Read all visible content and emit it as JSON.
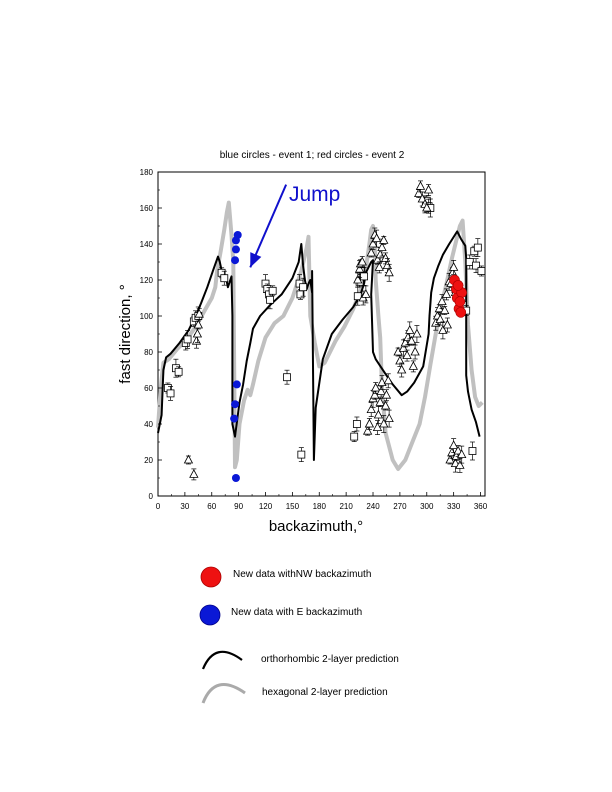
{
  "chart_data": {
    "type": "scatter",
    "title": "blue circles - event 1; red circles - event 2",
    "xlabel": "backazimuth,°",
    "ylabel": "fast direction, °",
    "xlim": [
      0,
      365
    ],
    "ylim": [
      0,
      180
    ],
    "xticks": [
      "0",
      "30",
      "60",
      "90",
      "120",
      "150",
      "180",
      "210",
      "240",
      "270",
      "300",
      "330",
      "360"
    ],
    "yticks": [
      "0",
      "20",
      "40",
      "60",
      "80",
      "100",
      "120",
      "140",
      "160",
      "180"
    ],
    "annotation": "Jump",
    "annotation_arrow": {
      "from": [
        143,
        173
      ],
      "to": [
        103,
        127
      ]
    },
    "colors": {
      "blue": "#0a18d6",
      "red": "#ee1111",
      "ortho": "#000000",
      "hex": "#c0c0c0",
      "jump": "#1010cc"
    },
    "series": [
      {
        "name": "blue circles - event 1",
        "type": "scatter",
        "marker": "circle",
        "points": [
          [
            86,
            131
          ],
          [
            87,
            137
          ],
          [
            87,
            142
          ],
          [
            89,
            145
          ],
          [
            88,
            62
          ],
          [
            86,
            51
          ],
          [
            85,
            43
          ],
          [
            87,
            10
          ]
        ]
      },
      {
        "name": "red circles - event 2",
        "type": "scatter",
        "marker": "circle",
        "points": [
          [
            331,
            120
          ],
          [
            333,
            115
          ],
          [
            334,
            110
          ],
          [
            336,
            104
          ],
          [
            338,
            102
          ],
          [
            339,
            113
          ],
          [
            337,
            108
          ],
          [
            335,
            117
          ]
        ]
      },
      {
        "name": "measurements (squares)",
        "type": "scatter",
        "marker": "square",
        "points": [
          [
            11,
            60
          ],
          [
            14,
            57
          ],
          [
            20,
            71
          ],
          [
            23,
            69
          ],
          [
            31,
            85
          ],
          [
            33,
            87
          ],
          [
            40,
            97
          ],
          [
            42,
            99
          ],
          [
            45,
            100
          ],
          [
            71,
            124
          ],
          [
            74,
            121
          ],
          [
            120,
            118
          ],
          [
            122,
            115
          ],
          [
            124,
            112
          ],
          [
            125,
            109
          ],
          [
            128,
            114
          ],
          [
            144,
            66
          ],
          [
            158,
            118
          ],
          [
            159,
            112
          ],
          [
            160,
            23
          ],
          [
            162,
            116
          ],
          [
            219,
            33
          ],
          [
            222,
            40
          ],
          [
            223,
            111
          ],
          [
            225,
            119
          ],
          [
            227,
            125
          ],
          [
            230,
            122
          ],
          [
            300,
            164
          ],
          [
            302,
            161
          ],
          [
            304,
            160
          ],
          [
            332,
            115
          ],
          [
            338,
            113
          ],
          [
            340,
            106
          ],
          [
            344,
            103
          ],
          [
            348,
            130
          ],
          [
            351,
            25
          ],
          [
            353,
            136
          ],
          [
            355,
            128
          ],
          [
            357,
            138
          ],
          [
            361,
            125
          ]
        ]
      },
      {
        "name": "measurements (triangles)",
        "type": "scatter",
        "marker": "triangle",
        "points": [
          [
            34,
            20
          ],
          [
            40,
            12
          ],
          [
            43,
            86
          ],
          [
            44,
            90
          ],
          [
            45,
            95
          ],
          [
            46,
            101
          ],
          [
            223,
            120
          ],
          [
            225,
            126
          ],
          [
            226,
            129
          ],
          [
            228,
            130
          ],
          [
            229,
            110
          ],
          [
            232,
            112
          ],
          [
            234,
            36
          ],
          [
            236,
            40
          ],
          [
            238,
            48
          ],
          [
            240,
            54
          ],
          [
            242,
            56
          ],
          [
            243,
            60
          ],
          [
            245,
            38
          ],
          [
            246,
            45
          ],
          [
            248,
            52
          ],
          [
            249,
            58
          ],
          [
            250,
            63
          ],
          [
            252,
            40
          ],
          [
            254,
            50
          ],
          [
            255,
            56
          ],
          [
            257,
            64
          ],
          [
            258,
            43
          ],
          [
            238,
            135
          ],
          [
            240,
            140
          ],
          [
            242,
            145
          ],
          [
            244,
            143
          ],
          [
            245,
            131
          ],
          [
            247,
            127
          ],
          [
            248,
            134
          ],
          [
            250,
            138
          ],
          [
            252,
            142
          ],
          [
            254,
            132
          ],
          [
            256,
            128
          ],
          [
            258,
            124
          ],
          [
            268,
            80
          ],
          [
            270,
            75
          ],
          [
            272,
            70
          ],
          [
            274,
            82
          ],
          [
            276,
            85
          ],
          [
            278,
            78
          ],
          [
            279,
            88
          ],
          [
            281,
            92
          ],
          [
            283,
            86
          ],
          [
            285,
            72
          ],
          [
            287,
            80
          ],
          [
            289,
            90
          ],
          [
            291,
            168
          ],
          [
            293,
            172
          ],
          [
            295,
            165
          ],
          [
            298,
            162
          ],
          [
            300,
            160
          ],
          [
            302,
            170
          ],
          [
            310,
            96
          ],
          [
            312,
            100
          ],
          [
            314,
            104
          ],
          [
            315,
            98
          ],
          [
            317,
            108
          ],
          [
            318,
            92
          ],
          [
            320,
            103
          ],
          [
            322,
            112
          ],
          [
            323,
            95
          ],
          [
            325,
            119
          ],
          [
            327,
            118
          ],
          [
            329,
            124
          ],
          [
            330,
            127
          ],
          [
            332,
            113
          ],
          [
            326,
            20
          ],
          [
            328,
            24
          ],
          [
            330,
            28
          ],
          [
            332,
            18
          ],
          [
            333,
            22
          ],
          [
            335,
            25
          ],
          [
            337,
            17
          ],
          [
            339,
            23
          ]
        ]
      },
      {
        "name": "orthorhombic 2-layer prediction",
        "type": "line",
        "points": [
          [
            0,
            35
          ],
          [
            4,
            45
          ],
          [
            6,
            70
          ],
          [
            9,
            77
          ],
          [
            14,
            79
          ],
          [
            24,
            85
          ],
          [
            34,
            92
          ],
          [
            42,
            100
          ],
          [
            48,
            107
          ],
          [
            55,
            116
          ],
          [
            62,
            126
          ],
          [
            67,
            133
          ],
          [
            69,
            130
          ],
          [
            72,
            123
          ],
          [
            74,
            120
          ],
          [
            76,
            121
          ],
          [
            78,
            116
          ],
          [
            80,
            119
          ],
          [
            82,
            122
          ],
          [
            83,
            100
          ],
          [
            83,
            40
          ],
          [
            86,
            33
          ],
          [
            91,
            52
          ],
          [
            95,
            62
          ],
          [
            99,
            75
          ],
          [
            103,
            85
          ],
          [
            106,
            93
          ],
          [
            114,
            100
          ],
          [
            125,
            106
          ],
          [
            138,
            112
          ],
          [
            150,
            121
          ],
          [
            157,
            130
          ],
          [
            160,
            140
          ],
          [
            162,
            128
          ],
          [
            164,
            120
          ],
          [
            166,
            115
          ],
          [
            168,
            118
          ],
          [
            170,
            120
          ],
          [
            172,
            113
          ],
          [
            172,
            125
          ],
          [
            174,
            20
          ],
          [
            176,
            49
          ],
          [
            184,
            76
          ],
          [
            194,
            90
          ],
          [
            206,
            98
          ],
          [
            218,
            105
          ],
          [
            226,
            112
          ],
          [
            230,
            118
          ],
          [
            232,
            124
          ],
          [
            236,
            128
          ],
          [
            238,
            130
          ],
          [
            240,
            131
          ],
          [
            238,
            112
          ],
          [
            240,
            80
          ],
          [
            243,
            76
          ],
          [
            255,
            67
          ],
          [
            262,
            62
          ],
          [
            272,
            56
          ],
          [
            278,
            58
          ],
          [
            286,
            63
          ],
          [
            296,
            72
          ],
          [
            302,
            90
          ],
          [
            303,
            100
          ],
          [
            305,
            113
          ],
          [
            308,
            121
          ],
          [
            313,
            128
          ],
          [
            318,
            134
          ],
          [
            325,
            140
          ],
          [
            334,
            147
          ],
          [
            338,
            143
          ],
          [
            343,
            139
          ],
          [
            344,
            132
          ],
          [
            344,
            110
          ],
          [
            344,
            67
          ],
          [
            346,
            58
          ],
          [
            350,
            48
          ],
          [
            355,
            41
          ],
          [
            359,
            33
          ]
        ]
      },
      {
        "name": "hexagonal 2-layer prediction",
        "type": "line",
        "points": [
          [
            0,
            38
          ],
          [
            3,
            60
          ],
          [
            6,
            74
          ],
          [
            12,
            76
          ],
          [
            22,
            82
          ],
          [
            32,
            87
          ],
          [
            42,
            94
          ],
          [
            52,
            103
          ],
          [
            60,
            110
          ],
          [
            64,
            116
          ],
          [
            66,
            125
          ],
          [
            70,
            136
          ],
          [
            74,
            148
          ],
          [
            77,
            158
          ],
          [
            79,
            163
          ],
          [
            82,
            145
          ],
          [
            84,
            130
          ],
          [
            86,
            16
          ],
          [
            88,
            20
          ],
          [
            91,
            40
          ],
          [
            96,
            53
          ],
          [
            100,
            59
          ],
          [
            103,
            56
          ],
          [
            106,
            62
          ],
          [
            112,
            75
          ],
          [
            120,
            88
          ],
          [
            130,
            96
          ],
          [
            140,
            100
          ],
          [
            150,
            110
          ],
          [
            160,
            125
          ],
          [
            166,
            138
          ],
          [
            168,
            144
          ],
          [
            170,
            100
          ],
          [
            172,
            94
          ],
          [
            175,
            85
          ],
          [
            180,
            72
          ],
          [
            186,
            74
          ],
          [
            198,
            86
          ],
          [
            208,
            94
          ],
          [
            218,
            104
          ],
          [
            226,
            114
          ],
          [
            232,
            126
          ],
          [
            236,
            140
          ],
          [
            238,
            148
          ],
          [
            240,
            150
          ],
          [
            242,
            140
          ],
          [
            243,
            120
          ],
          [
            246,
            100
          ],
          [
            248,
            88
          ],
          [
            250,
            60
          ],
          [
            254,
            35
          ],
          [
            262,
            20
          ],
          [
            268,
            15
          ],
          [
            276,
            20
          ],
          [
            284,
            30
          ],
          [
            292,
            40
          ],
          [
            298,
            55
          ],
          [
            304,
            73
          ],
          [
            310,
            90
          ],
          [
            316,
            105
          ],
          [
            322,
            118
          ],
          [
            328,
            132
          ],
          [
            333,
            142
          ],
          [
            337,
            150
          ],
          [
            340,
            153
          ],
          [
            343,
            130
          ],
          [
            346,
            95
          ],
          [
            350,
            70
          ],
          [
            354,
            55
          ],
          [
            358,
            50
          ],
          [
            362,
            52
          ]
        ]
      }
    ]
  },
  "legend": {
    "red_label": "New data withNW backazimuth",
    "blue_label": "New data with E backazimuth",
    "ortho_label": "orthorhombic 2-layer prediction",
    "hex_label": "hexagonal 2-layer prediction"
  }
}
